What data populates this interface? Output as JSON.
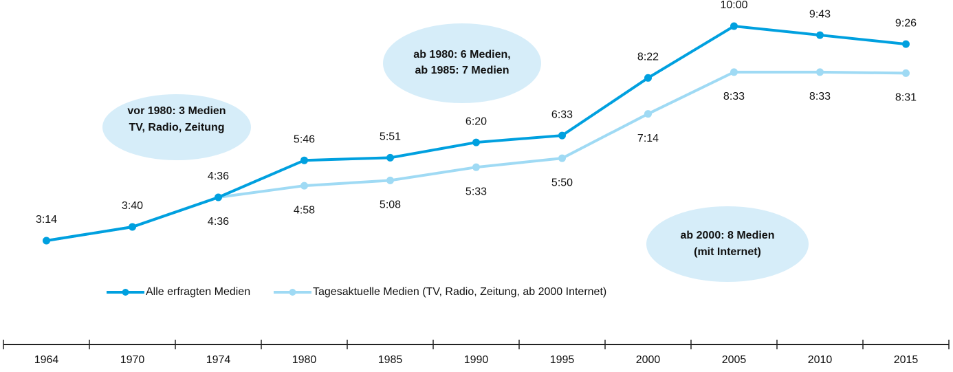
{
  "chart_data": {
    "type": "line",
    "categories": [
      "1964",
      "1970",
      "1974",
      "1980",
      "1985",
      "1990",
      "1995",
      "2000",
      "2005",
      "2010",
      "2015"
    ],
    "series": [
      {
        "name": "Alle erfragten Medien",
        "color": "#00a0df",
        "values": [
          194,
          220,
          276,
          346,
          351,
          380,
          393,
          502,
          600,
          583,
          566
        ],
        "value_labels": [
          "3:14",
          "3:40",
          "4:36",
          "5:46",
          "5:51",
          "6:20",
          "6:33",
          "8:22",
          "10:00",
          "9:43",
          "9:26"
        ]
      },
      {
        "name": "Tagesaktuelle Medien (TV, Radio, Zeitung, ab 2000 Internet)",
        "color": "#9fdaf4",
        "values": [
          194,
          220,
          276,
          298,
          308,
          333,
          350,
          434,
          513,
          513,
          511
        ],
        "value_labels": [
          null,
          null,
          "4:36",
          "4:58",
          "5:08",
          "5:33",
          "5:50",
          "7:14",
          "8:33",
          "8:33",
          "8:31"
        ]
      }
    ],
    "annotations": [
      [
        "vor 1980: 3 Medien",
        "TV, Radio, Zeitung"
      ],
      [
        "ab 1980: 6 Medien,",
        "ab 1985: 7 Medien"
      ],
      [
        "ab 2000: 8 Medien",
        "(mit Internet)"
      ]
    ]
  }
}
